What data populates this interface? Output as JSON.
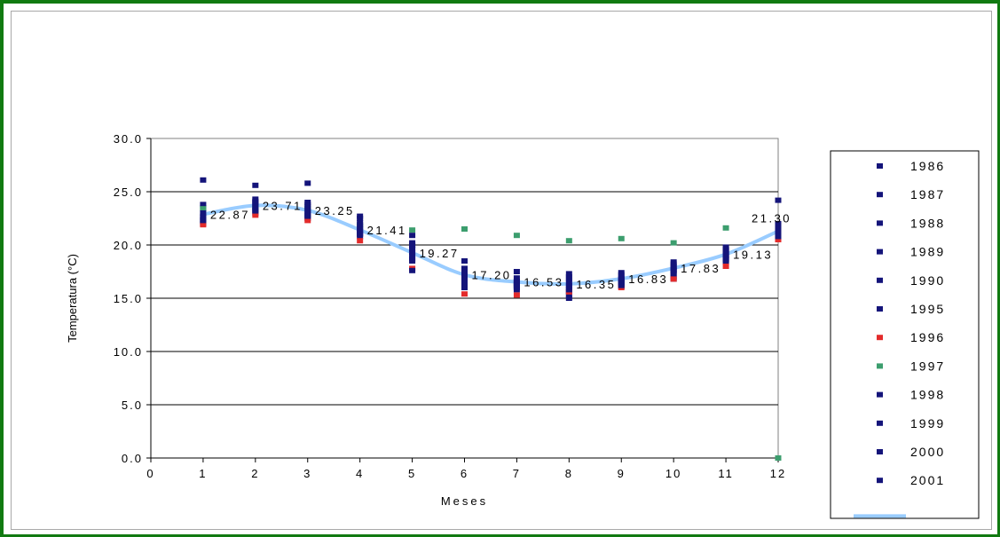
{
  "chart_data": {
    "type": "scatter",
    "xlabel": "Meses",
    "ylabel": "Temperatura (°C)",
    "xlim": [
      0,
      12
    ],
    "ylim": [
      0,
      30
    ],
    "x_ticks": [
      "0",
      "1",
      "2",
      "3",
      "4",
      "5",
      "6",
      "7",
      "8",
      "9",
      "10",
      "11",
      "12"
    ],
    "y_ticks": [
      "0.0",
      "5.0",
      "10.0",
      "15.0",
      "20.0",
      "25.0",
      "30.0"
    ],
    "grid": "horizontal",
    "legend_position": "right",
    "colors": {
      "navy": "#14147a",
      "red": "#e32b2b",
      "green": "#3c9e6e",
      "mean_line": "#99ccff",
      "grid": "#000000"
    },
    "series": [
      {
        "name": "1986",
        "color": "#14147a",
        "points": [
          [
            1,
            22.2
          ],
          [
            2,
            23.3
          ],
          [
            3,
            22.8
          ],
          [
            4,
            21.3
          ],
          [
            5,
            19.3
          ],
          [
            6,
            16.8
          ],
          [
            7,
            16.3
          ],
          [
            8,
            16.2
          ],
          [
            9,
            16.6
          ],
          [
            10,
            17.3
          ],
          [
            11,
            18.9
          ],
          [
            12,
            20.9
          ]
        ]
      },
      {
        "name": "1987",
        "color": "#14147a",
        "points": [
          [
            1,
            22.7
          ],
          [
            2,
            23.6
          ],
          [
            3,
            23.4
          ],
          [
            4,
            21.7
          ],
          [
            5,
            19.9
          ],
          [
            6,
            17.3
          ],
          [
            7,
            16.6
          ],
          [
            8,
            16.5
          ],
          [
            9,
            16.9
          ],
          [
            10,
            17.7
          ],
          [
            11,
            19.1
          ],
          [
            12,
            21.1
          ]
        ]
      },
      {
        "name": "1988",
        "color": "#14147a",
        "points": [
          [
            1,
            23.5
          ],
          [
            2,
            24.0
          ],
          [
            3,
            23.8
          ],
          [
            4,
            22.1
          ],
          [
            5,
            19.0
          ],
          [
            6,
            16.4
          ],
          [
            7,
            16.0
          ],
          [
            8,
            16.0
          ],
          [
            9,
            16.3
          ],
          [
            10,
            17.0
          ],
          [
            11,
            18.6
          ],
          [
            12,
            21.4
          ]
        ]
      },
      {
        "name": "1989",
        "color": "#14147a",
        "points": [
          [
            1,
            22.4
          ],
          [
            2,
            23.0
          ],
          [
            3,
            23.0
          ],
          [
            4,
            21.0
          ],
          [
            5,
            18.7
          ],
          [
            6,
            16.0
          ],
          [
            7,
            15.8
          ],
          [
            8,
            15.6
          ],
          [
            9,
            16.1
          ],
          [
            10,
            16.8
          ],
          [
            11,
            18.4
          ],
          [
            12,
            20.7
          ]
        ]
      },
      {
        "name": "1990",
        "color": "#14147a",
        "points": [
          [
            1,
            23.8
          ],
          [
            2,
            23.8
          ],
          [
            3,
            24.0
          ],
          [
            4,
            22.7
          ],
          [
            5,
            20.2
          ],
          [
            6,
            17.8
          ],
          [
            7,
            17.5
          ],
          [
            8,
            17.0
          ],
          [
            9,
            17.4
          ],
          [
            10,
            18.4
          ],
          [
            11,
            19.5
          ],
          [
            12,
            21.7
          ]
        ]
      },
      {
        "name": "1995",
        "color": "#14147a",
        "points": [
          [
            1,
            22.0
          ],
          [
            2,
            24.3
          ],
          [
            3,
            22.5
          ],
          [
            4,
            20.8
          ],
          [
            5,
            18.5
          ],
          [
            6,
            18.5
          ],
          [
            7,
            16.1
          ],
          [
            8,
            15.3
          ],
          [
            9,
            16.4
          ],
          [
            10,
            17.5
          ],
          [
            11,
            19.8
          ],
          [
            12,
            22.0
          ]
        ]
      },
      {
        "name": "1996",
        "color": "#e32b2b",
        "points": [
          [
            1,
            21.9
          ],
          [
            2,
            22.8
          ],
          [
            3,
            22.3
          ],
          [
            4,
            20.4
          ],
          [
            5,
            17.8
          ],
          [
            6,
            15.4
          ],
          [
            7,
            15.3
          ],
          [
            8,
            15.6
          ],
          [
            9,
            16.0
          ],
          [
            10,
            16.8
          ],
          [
            11,
            18.0
          ],
          [
            12,
            20.5
          ]
        ]
      },
      {
        "name": "1997",
        "color": "#3c9e6e",
        "points": [
          [
            1,
            23.4
          ],
          [
            2,
            23.5
          ],
          [
            3,
            23.4
          ],
          [
            4,
            21.8
          ],
          [
            5,
            21.4
          ],
          [
            6,
            21.5
          ],
          [
            7,
            20.9
          ],
          [
            8,
            20.4
          ],
          [
            9,
            20.6
          ],
          [
            10,
            20.2
          ],
          [
            11,
            21.6
          ],
          [
            12,
            0.0
          ]
        ]
      },
      {
        "name": "1998",
        "color": "#14147a",
        "points": [
          [
            1,
            26.1
          ],
          [
            2,
            25.6
          ],
          [
            3,
            25.8
          ],
          [
            4,
            22.5
          ],
          [
            5,
            20.9
          ],
          [
            6,
            17.0
          ],
          [
            7,
            16.9
          ],
          [
            8,
            16.8
          ],
          [
            9,
            17.2
          ],
          [
            10,
            18.0
          ],
          [
            11,
            19.3
          ],
          [
            12,
            24.2
          ]
        ]
      },
      {
        "name": "1999",
        "color": "#14147a",
        "points": [
          [
            1,
            22.3
          ],
          [
            2,
            23.5
          ],
          [
            3,
            22.7
          ],
          [
            4,
            21.5
          ],
          [
            5,
            17.6
          ],
          [
            6,
            16.5
          ],
          [
            7,
            16.2
          ],
          [
            8,
            15.0
          ],
          [
            9,
            16.7
          ],
          [
            10,
            17.9
          ],
          [
            11,
            18.7
          ],
          [
            12,
            21.2
          ]
        ]
      },
      {
        "name": "2000",
        "color": "#14147a",
        "points": [
          [
            1,
            23.0
          ],
          [
            2,
            24.1
          ],
          [
            3,
            23.6
          ],
          [
            4,
            21.1
          ],
          [
            5,
            19.6
          ],
          [
            6,
            17.5
          ],
          [
            7,
            16.4
          ],
          [
            8,
            15.8
          ],
          [
            9,
            16.2
          ],
          [
            10,
            17.6
          ],
          [
            11,
            19.0
          ],
          [
            12,
            20.8
          ]
        ]
      },
      {
        "name": "2001",
        "color": "#14147a",
        "points": [
          [
            1,
            22.6
          ],
          [
            2,
            23.2
          ],
          [
            3,
            23.2
          ],
          [
            4,
            21.9
          ],
          [
            5,
            20.0
          ],
          [
            6,
            17.6
          ],
          [
            7,
            16.5
          ],
          [
            8,
            17.3
          ],
          [
            9,
            16.8
          ],
          [
            10,
            18.2
          ],
          [
            11,
            19.6
          ],
          [
            12,
            21.5
          ]
        ]
      },
      {
        "name": "",
        "type": "line",
        "color": "#99ccff",
        "x": [
          1,
          2,
          3,
          4,
          5,
          6,
          7,
          8,
          9,
          10,
          11,
          12
        ],
        "values": [
          22.87,
          23.71,
          23.25,
          21.41,
          19.27,
          17.2,
          16.53,
          16.35,
          16.83,
          17.83,
          19.13,
          21.3
        ],
        "labels": [
          "22.87",
          "23.71",
          "23.25",
          "21.41",
          "19.27",
          "17.20",
          "16.53",
          "16.35",
          "16.83",
          "17.83",
          "19.13",
          "21.30"
        ]
      }
    ]
  }
}
